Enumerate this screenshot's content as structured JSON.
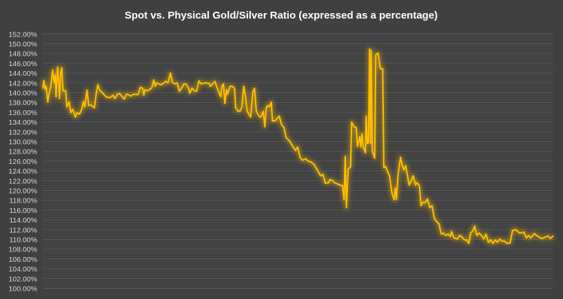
{
  "chart_data": {
    "type": "line",
    "title": "Spot vs. Physical Gold/Silver Ratio (expressed as a percentage)",
    "xlabel": "",
    "ylabel": "",
    "ylim": [
      100,
      152
    ],
    "ytick_step": 2,
    "grid": true,
    "legend": "none",
    "colors": {
      "background": "#404040",
      "line": "#FFC000",
      "grid_major": "#5a5a5a",
      "grid_minor": "#4a4a4a",
      "text": "#d9d9d9",
      "title": "#ffffff"
    },
    "series": [
      {
        "name": "Spot vs. Physical Gold/Silver Ratio",
        "x": [
          0,
          5,
          10,
          15,
          22,
          28,
          35,
          43,
          50,
          55,
          58,
          65,
          70,
          73,
          78,
          83,
          88,
          100,
          105,
          115,
          122,
          130,
          137,
          142,
          150,
          160,
          170,
          177,
          183,
          193,
          200,
          210,
          225,
          233,
          240,
          247,
          255,
          265,
          275,
          285,
          295,
          305,
          315,
          325,
          335,
          345,
          355,
          365,
          375,
          385,
          395,
          405,
          415,
          425,
          435,
          440,
          445,
          455,
          465,
          475,
          483,
          490,
          495,
          505,
          515,
          525,
          535,
          545,
          556,
          565,
          575,
          585,
          595,
          605,
          615,
          625,
          635,
          640,
          650,
          660,
          670,
          680,
          690,
          705,
          725,
          730,
          740,
          750,
          760,
          770,
          775,
          780,
          787,
          793,
          800,
          805,
          815,
          825,
          835,
          840,
          850,
          860,
          867,
          875,
          883,
          890,
          905,
          915,
          922,
          930,
          935,
          945,
          952,
          960,
          967,
          973,
          980,
          987,
          995,
          1000,
          1013,
          1025,
          1030,
          1040,
          1050,
          1060,
          1075,
          1090,
          1100,
          1110,
          1120,
          1130,
          1145,
          1155,
          1165,
          1180,
          1190,
          1200,
          1210,
          1220,
          1230,
          1245,
          1250,
          1260,
          1270,
          1280,
          1295,
          1305,
          1312,
          1317,
          1322,
          1330,
          1340,
          1345,
          1355,
          1365,
          1370,
          1380,
          1385,
          1390,
          1395,
          1405,
          1408,
          1413,
          1418,
          1423,
          1427,
          1430,
          1435,
          1445,
          1450,
          1460,
          1470,
          1480,
          1485,
          1493,
          1500,
          1510,
          1520,
          1530,
          1535,
          1540,
          1547,
          1558,
          1565,
          1573,
          1580,
          1595,
          1605,
          1613,
          1623,
          1630,
          1640,
          1647,
          1655,
          1665,
          1675,
          1685,
          1695,
          1705,
          1715,
          1725,
          1735,
          1745,
          1755,
          1765,
          1775,
          1780,
          1790,
          1805,
          1815,
          1825,
          1835,
          1845,
          1855,
          1863,
          1873,
          1880,
          1890,
          1900,
          1910,
          1920,
          1930,
          1940,
          1950,
          1960,
          1970,
          1980,
          1990,
          2000,
          2010,
          2020,
          2035,
          2045,
          2060,
          2075,
          2095,
          2105,
          2115,
          2125,
          2140,
          2150,
          2160,
          2170,
          2180,
          2190,
          2200,
          2210,
          2223
        ],
        "values": [
          140.9,
          142.5,
          140.7,
          141.3,
          138.1,
          139.9,
          141.1,
          144.6,
          142.0,
          143.7,
          139.2,
          145.2,
          142.0,
          138.8,
          143.9,
          145.1,
          140.4,
          140.4,
          137.1,
          138.1,
          135.9,
          136.6,
          135.8,
          135.0,
          135.9,
          135.6,
          136.6,
          138.2,
          137.1,
          140.5,
          137.4,
          137.5,
          136.9,
          139.9,
          141.6,
          140.6,
          140.2,
          139.7,
          139.2,
          139.0,
          139.0,
          139.5,
          138.8,
          139.7,
          139.8,
          139.2,
          138.7,
          139.7,
          139.5,
          139.3,
          139.7,
          139.6,
          139.6,
          141.1,
          140.9,
          139.5,
          140.6,
          140.4,
          140.6,
          141.0,
          142.6,
          141.3,
          142.0,
          141.8,
          141.6,
          141.9,
          142.3,
          142.0,
          144.0,
          142.1,
          141.8,
          142.0,
          140.3,
          140.9,
          141.8,
          141.7,
          140.9,
          139.9,
          140.9,
          140.4,
          140.3,
          142.4,
          141.8,
          142.0,
          141.9,
          141.3,
          141.8,
          142.3,
          140.9,
          139.7,
          139.2,
          141.3,
          141.8,
          137.8,
          140.6,
          139.7,
          141.3,
          141.3,
          140.9,
          136.9,
          136.2,
          136.3,
          137.1,
          141.3,
          139.2,
          136.2,
          135.0,
          140.2,
          140.9,
          136.2,
          135.7,
          135.0,
          135.2,
          136.2,
          133.0,
          136.9,
          137.4,
          137.1,
          138.1,
          134.2,
          134.3,
          135.0,
          135.2,
          133.4,
          132.9,
          130.8,
          130.1,
          128.9,
          128.2,
          128.9,
          126.8,
          126.2,
          126.5,
          126.0,
          125.9,
          125.4,
          124.6,
          123.8,
          123.0,
          123.3,
          121.5,
          121.6,
          122.2,
          122.1,
          121.6,
          121.4,
          121.1,
          121.0,
          118.1,
          127.0,
          116.5,
          124.4,
          124.8,
          134.0,
          133.0,
          132.9,
          129.0,
          131.0,
          128.9,
          131.6,
          128.9,
          127.7,
          135.2,
          129.6,
          129.8,
          148.9,
          129.6,
          148.6,
          128.0,
          126.6,
          147.7,
          148.1,
          144.9,
          144.9,
          124.7,
          124.9,
          124.0,
          123.0,
          119.5,
          118.1,
          120.5,
          118.2,
          123.3,
          126.8,
          125.1,
          124.2,
          125.1,
          121.1,
          122.0,
          123.0,
          121.1,
          121.6,
          120.9,
          116.9,
          117.6,
          117.5,
          118.3,
          116.5,
          116.9,
          114.3,
          113.6,
          113.2,
          111.1,
          111.3,
          110.8,
          111.1,
          110.6,
          111.6,
          110.3,
          110.1,
          110.8,
          110.5,
          109.9,
          109.9,
          109.2,
          111.3,
          111.8,
          112.7,
          110.8,
          111.3,
          110.8,
          110.1,
          111.1,
          109.4,
          109.9,
          109.2,
          109.9,
          109.4,
          110.1,
          109.6,
          109.7,
          109.2,
          109.3,
          111.8,
          112.0,
          111.3,
          111.5,
          110.3,
          110.8,
          110.3,
          111.2,
          110.8,
          110.5,
          110.2,
          110.3,
          110.5,
          110.7,
          110.2,
          110.7
        ]
      }
    ],
    "ytick_labels": [
      "100.00%",
      "102.00%",
      "104.00%",
      "106.00%",
      "108.00%",
      "110.00%",
      "112.00%",
      "114.00%",
      "116.00%",
      "118.00%",
      "120.00%",
      "122.00%",
      "124.00%",
      "126.00%",
      "128.00%",
      "130.00%",
      "132.00%",
      "134.00%",
      "136.00%",
      "138.00%",
      "140.00%",
      "142.00%",
      "144.00%",
      "146.00%",
      "148.00%",
      "150.00%",
      "152.00%"
    ]
  }
}
